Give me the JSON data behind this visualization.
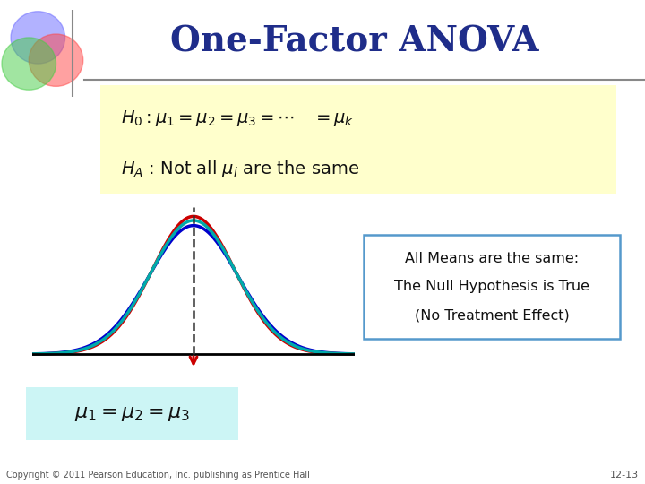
{
  "title": "One-Factor ANOVA",
  "title_color": "#1f2d8a",
  "title_fontsize": 28,
  "bg_color": "#ffffff",
  "hypothesis_bg": "#ffffcc",
  "bottom_bg": "#ccf5f5",
  "box_text_line1": "All Means are the same:",
  "box_text_line2": "The Null Hypothesis is True",
  "box_text_line3": "(No Treatment Effect)",
  "box_border_color": "#5599cc",
  "box_bg": "#ffffff",
  "curve_colors": [
    "#0000cc",
    "#cc0000",
    "#00aaaa"
  ],
  "baseline_color": "#000000",
  "dashed_color": "#333333",
  "arrow_color": "#cc0000",
  "copyright_text": "Copyright © 2011 Pearson Education, Inc. publishing as Prentice Hall",
  "page_text": "12-13",
  "header_line_color": "#888888"
}
